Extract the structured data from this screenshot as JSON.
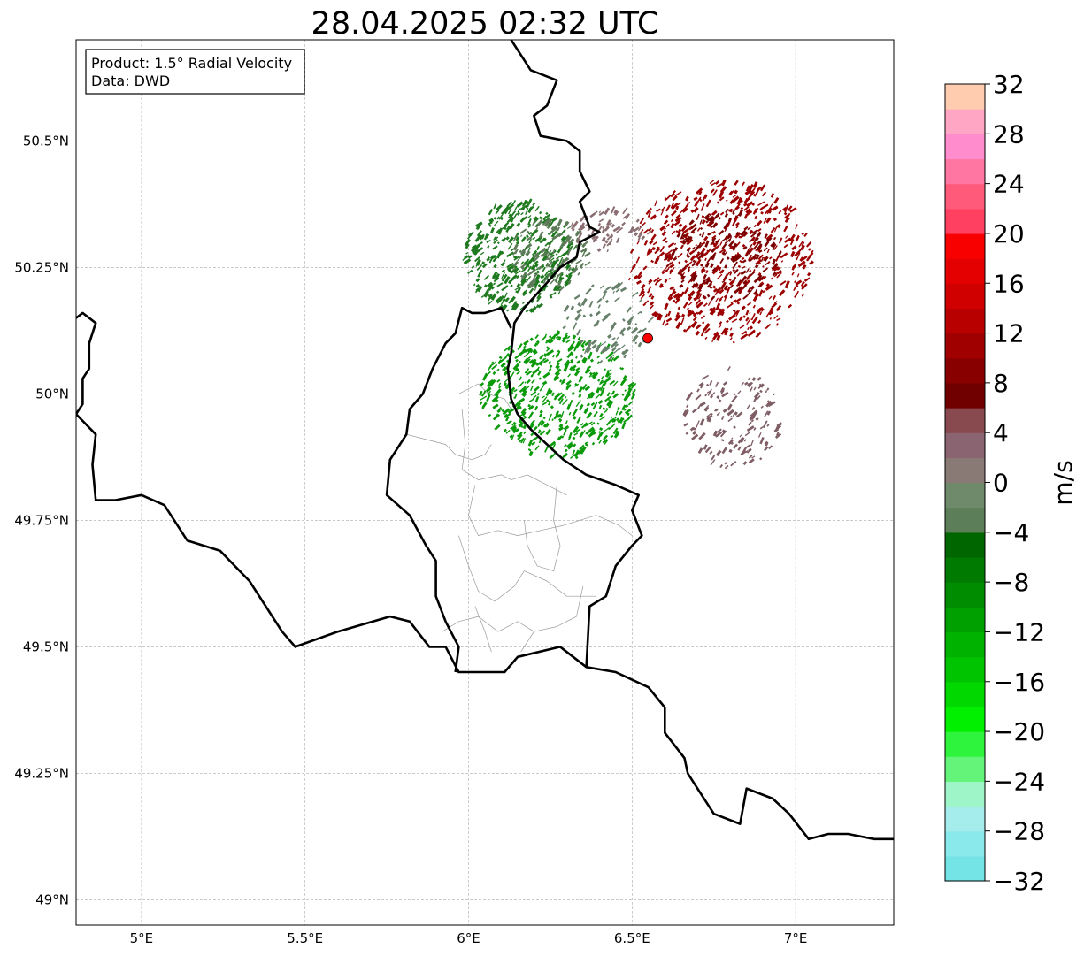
{
  "title": "28.04.2025 02:32 UTC",
  "info_box": {
    "line1": "Product: 1.5° Radial Velocity",
    "line2": "Data: DWD"
  },
  "map": {
    "lon_range": [
      4.8,
      7.3
    ],
    "lat_range": [
      48.95,
      50.7
    ],
    "lon_ticks": [
      {
        "value": 5.0,
        "label": "5°E"
      },
      {
        "value": 5.5,
        "label": "5.5°E"
      },
      {
        "value": 6.0,
        "label": "6°E"
      },
      {
        "value": 6.5,
        "label": "6.5°E"
      },
      {
        "value": 7.0,
        "label": "7°E"
      }
    ],
    "lat_ticks": [
      {
        "value": 49.0,
        "label": "49°N"
      },
      {
        "value": 49.25,
        "label": "49.25°N"
      },
      {
        "value": 49.5,
        "label": "49.5°N"
      },
      {
        "value": 49.75,
        "label": "49.75°N"
      },
      {
        "value": 50.0,
        "label": "50°N"
      },
      {
        "value": 50.25,
        "label": "50.25°N"
      },
      {
        "value": 50.5,
        "label": "50.5°N"
      }
    ],
    "grid": true,
    "radar_site": {
      "lon": 6.548,
      "lat": 50.11,
      "color": "#ff0000"
    },
    "national_border": [
      [
        6.13,
        50.7
      ],
      [
        6.17,
        50.66
      ],
      [
        6.19,
        50.64
      ],
      [
        6.27,
        50.62
      ],
      [
        6.24,
        50.57
      ],
      [
        6.2,
        50.55
      ],
      [
        6.22,
        50.51
      ],
      [
        6.3,
        50.5
      ],
      [
        6.34,
        50.48
      ],
      [
        6.34,
        50.44
      ],
      [
        6.37,
        50.4
      ],
      [
        6.34,
        50.38
      ],
      [
        6.37,
        50.33
      ],
      [
        6.4,
        50.32
      ],
      [
        6.34,
        50.3
      ],
      [
        6.33,
        50.27
      ],
      [
        6.28,
        50.25
      ],
      [
        6.24,
        50.22
      ],
      [
        6.17,
        50.17
      ],
      [
        6.14,
        50.14
      ],
      [
        6.13,
        50.08
      ],
      [
        6.12,
        50.05
      ],
      [
        6.13,
        49.99
      ],
      [
        6.15,
        49.96
      ],
      [
        6.19,
        49.93
      ],
      [
        6.24,
        49.9
      ],
      [
        6.29,
        49.87
      ],
      [
        6.36,
        49.84
      ],
      [
        6.45,
        49.82
      ],
      [
        6.52,
        49.8
      ],
      [
        6.5,
        49.77
      ],
      [
        6.53,
        49.72
      ],
      [
        6.5,
        49.7
      ],
      [
        6.45,
        49.66
      ],
      [
        6.42,
        49.6
      ],
      [
        6.37,
        49.58
      ],
      [
        6.36,
        49.46
      ],
      [
        6.28,
        49.5
      ],
      [
        6.15,
        49.48
      ],
      [
        6.11,
        49.45
      ],
      [
        6.04,
        49.45
      ],
      [
        5.97,
        49.45
      ],
      [
        5.93,
        49.5
      ],
      [
        5.88,
        49.5
      ],
      [
        5.82,
        49.55
      ],
      [
        5.76,
        49.56
      ],
      [
        5.6,
        49.53
      ],
      [
        5.47,
        49.5
      ],
      [
        5.43,
        49.53
      ],
      [
        5.33,
        49.63
      ],
      [
        5.24,
        49.69
      ],
      [
        5.14,
        49.71
      ],
      [
        5.07,
        49.78
      ],
      [
        5.0,
        49.8
      ],
      [
        4.92,
        49.79
      ],
      [
        4.86,
        49.79
      ],
      [
        4.85,
        49.86
      ],
      [
        4.86,
        49.92
      ],
      [
        4.8,
        49.96
      ]
    ],
    "west_border": [
      [
        4.8,
        50.15
      ],
      [
        4.82,
        50.16
      ],
      [
        4.86,
        50.14
      ],
      [
        4.84,
        50.1
      ],
      [
        4.84,
        50.05
      ],
      [
        4.82,
        50.03
      ],
      [
        4.82,
        49.98
      ],
      [
        4.8,
        49.96
      ]
    ],
    "lux_border": [
      [
        6.13,
        50.13
      ],
      [
        6.1,
        50.17
      ],
      [
        6.05,
        50.16
      ],
      [
        6.01,
        50.16
      ],
      [
        5.98,
        50.17
      ],
      [
        5.96,
        50.12
      ],
      [
        5.93,
        50.1
      ],
      [
        5.89,
        50.05
      ],
      [
        5.86,
        50.0
      ],
      [
        5.82,
        49.97
      ],
      [
        5.81,
        49.92
      ],
      [
        5.76,
        49.87
      ],
      [
        5.75,
        49.8
      ],
      [
        5.82,
        49.76
      ],
      [
        5.87,
        49.7
      ],
      [
        5.9,
        49.67
      ],
      [
        5.9,
        49.6
      ],
      [
        5.93,
        49.55
      ],
      [
        5.97,
        49.5
      ],
      [
        5.96,
        49.45
      ]
    ],
    "east_border": [
      [
        6.36,
        49.46
      ],
      [
        6.45,
        49.45
      ],
      [
        6.55,
        49.42
      ],
      [
        6.6,
        49.38
      ],
      [
        6.6,
        49.33
      ],
      [
        6.66,
        49.28
      ],
      [
        6.67,
        49.25
      ],
      [
        6.7,
        49.22
      ],
      [
        6.75,
        49.17
      ],
      [
        6.83,
        49.15
      ],
      [
        6.85,
        49.22
      ],
      [
        6.93,
        49.2
      ],
      [
        6.98,
        49.17
      ],
      [
        7.04,
        49.12
      ],
      [
        7.1,
        49.13
      ],
      [
        7.16,
        49.13
      ],
      [
        7.24,
        49.12
      ],
      [
        7.3,
        49.12
      ]
    ],
    "districts": [
      [
        [
          5.97,
          50.0
        ],
        [
          6.03,
          50.02
        ],
        [
          6.06,
          50.0
        ],
        [
          6.11,
          49.99
        ],
        [
          6.13,
          49.97
        ]
      ],
      [
        [
          5.81,
          49.92
        ],
        [
          5.87,
          49.91
        ],
        [
          5.93,
          49.9
        ],
        [
          5.96,
          49.88
        ],
        [
          6.01,
          49.87
        ],
        [
          6.05,
          49.88
        ],
        [
          6.07,
          49.9
        ]
      ],
      [
        [
          5.98,
          49.97
        ],
        [
          5.99,
          49.9
        ],
        [
          5.98,
          49.85
        ],
        [
          6.03,
          49.83
        ],
        [
          6.1,
          49.84
        ],
        [
          6.13,
          49.83
        ],
        [
          6.18,
          49.84
        ],
        [
          6.24,
          49.82
        ],
        [
          6.3,
          49.8
        ]
      ],
      [
        [
          6.02,
          49.82
        ],
        [
          6.0,
          49.76
        ],
        [
          6.03,
          49.72
        ],
        [
          6.09,
          49.73
        ],
        [
          6.15,
          49.72
        ],
        [
          6.22,
          49.73
        ],
        [
          6.29,
          49.74
        ],
        [
          6.39,
          49.76
        ],
        [
          6.46,
          49.74
        ],
        [
          6.5,
          49.72
        ]
      ],
      [
        [
          5.97,
          49.72
        ],
        [
          6.0,
          49.66
        ],
        [
          6.03,
          49.61
        ],
        [
          6.08,
          49.59
        ],
        [
          6.14,
          49.62
        ],
        [
          6.17,
          49.65
        ],
        [
          6.24,
          49.63
        ],
        [
          6.3,
          49.6
        ],
        [
          6.39,
          49.6
        ]
      ],
      [
        [
          6.17,
          49.75
        ],
        [
          6.18,
          49.7
        ],
        [
          6.21,
          49.66
        ],
        [
          6.26,
          49.65
        ],
        [
          6.28,
          49.7
        ],
        [
          6.26,
          49.75
        ],
        [
          6.27,
          49.82
        ]
      ],
      [
        [
          5.92,
          49.53
        ],
        [
          5.97,
          49.55
        ],
        [
          6.03,
          49.56
        ],
        [
          6.09,
          49.53
        ],
        [
          6.15,
          49.55
        ],
        [
          6.2,
          49.53
        ],
        [
          6.27,
          49.54
        ],
        [
          6.33,
          49.56
        ],
        [
          6.35,
          49.62
        ]
      ],
      [
        [
          6.02,
          49.58
        ],
        [
          6.05,
          49.53
        ],
        [
          6.07,
          49.49
        ]
      ],
      [
        [
          6.2,
          49.53
        ],
        [
          6.16,
          49.49
        ]
      ]
    ]
  },
  "radar_echoes": {
    "note_colors": {
      "strong_inbound": "#008a00",
      "weak_inbound": "#4a7a44",
      "near_zero": "#8a6a6e",
      "outbound": "#a00000",
      "strong_outbound": "#8a0000"
    },
    "regions": [
      {
        "name": "nw-green",
        "lon": [
          5.98,
          6.32
        ],
        "lat": [
          50.16,
          50.38
        ],
        "color": "#1f7a1f",
        "density": 380
      },
      {
        "name": "nw-greygreen",
        "lon": [
          6.12,
          6.36
        ],
        "lat": [
          50.2,
          50.34
        ],
        "color": "#5d7a58",
        "density": 120
      },
      {
        "name": "sw-green",
        "lon": [
          6.03,
          6.5
        ],
        "lat": [
          49.87,
          50.12
        ],
        "color": "#0a9a0a",
        "density": 520
      },
      {
        "name": "center-greygreen",
        "lon": [
          6.28,
          6.55
        ],
        "lat": [
          50.06,
          50.22
        ],
        "color": "#66806a",
        "density": 90
      },
      {
        "name": "ne-red",
        "lon": [
          6.48,
          7.05
        ],
        "lat": [
          50.1,
          50.42
        ],
        "color": "#9c0000",
        "density": 620
      },
      {
        "name": "ne-darkred",
        "lon": [
          6.6,
          6.95
        ],
        "lat": [
          50.18,
          50.36
        ],
        "color": "#7a0000",
        "density": 200
      },
      {
        "name": "se-grey",
        "lon": [
          6.65,
          6.95
        ],
        "lat": [
          49.85,
          50.05
        ],
        "color": "#7e5e64",
        "density": 160
      },
      {
        "name": "n-grey",
        "lon": [
          6.3,
          6.55
        ],
        "lat": [
          50.28,
          50.36
        ],
        "color": "#8a6e72",
        "density": 70
      }
    ]
  },
  "colorbar": {
    "label": "m/s",
    "min": -32,
    "max": 32,
    "tick_values": [
      -32,
      -28,
      -24,
      -20,
      -16,
      -12,
      -8,
      -4,
      0,
      4,
      8,
      12,
      16,
      20,
      24,
      28,
      32
    ],
    "tick_labels": [
      "−32",
      "−28",
      "−24",
      "−20",
      "−16",
      "−12",
      "−8",
      "−4",
      "0",
      "4",
      "8",
      "12",
      "16",
      "20",
      "24",
      "28",
      "32"
    ],
    "colors": [
      "#74e4e6",
      "#8ae9ea",
      "#a5ecec",
      "#9ef5c8",
      "#64f47a",
      "#2ef43e",
      "#00f000",
      "#00d800",
      "#00c400",
      "#00b200",
      "#00a000",
      "#008c00",
      "#007a00",
      "#006600",
      "#5c7e58",
      "#6e8a6a",
      "#8a7a76",
      "#8a6470",
      "#884a4e",
      "#700000",
      "#880000",
      "#a00000",
      "#b80000",
      "#d00000",
      "#e40000",
      "#f80000",
      "#ff4060",
      "#ff5a7a",
      "#ff76a2",
      "#ff8ccc",
      "#ffa6c4",
      "#ffccb0"
    ]
  }
}
